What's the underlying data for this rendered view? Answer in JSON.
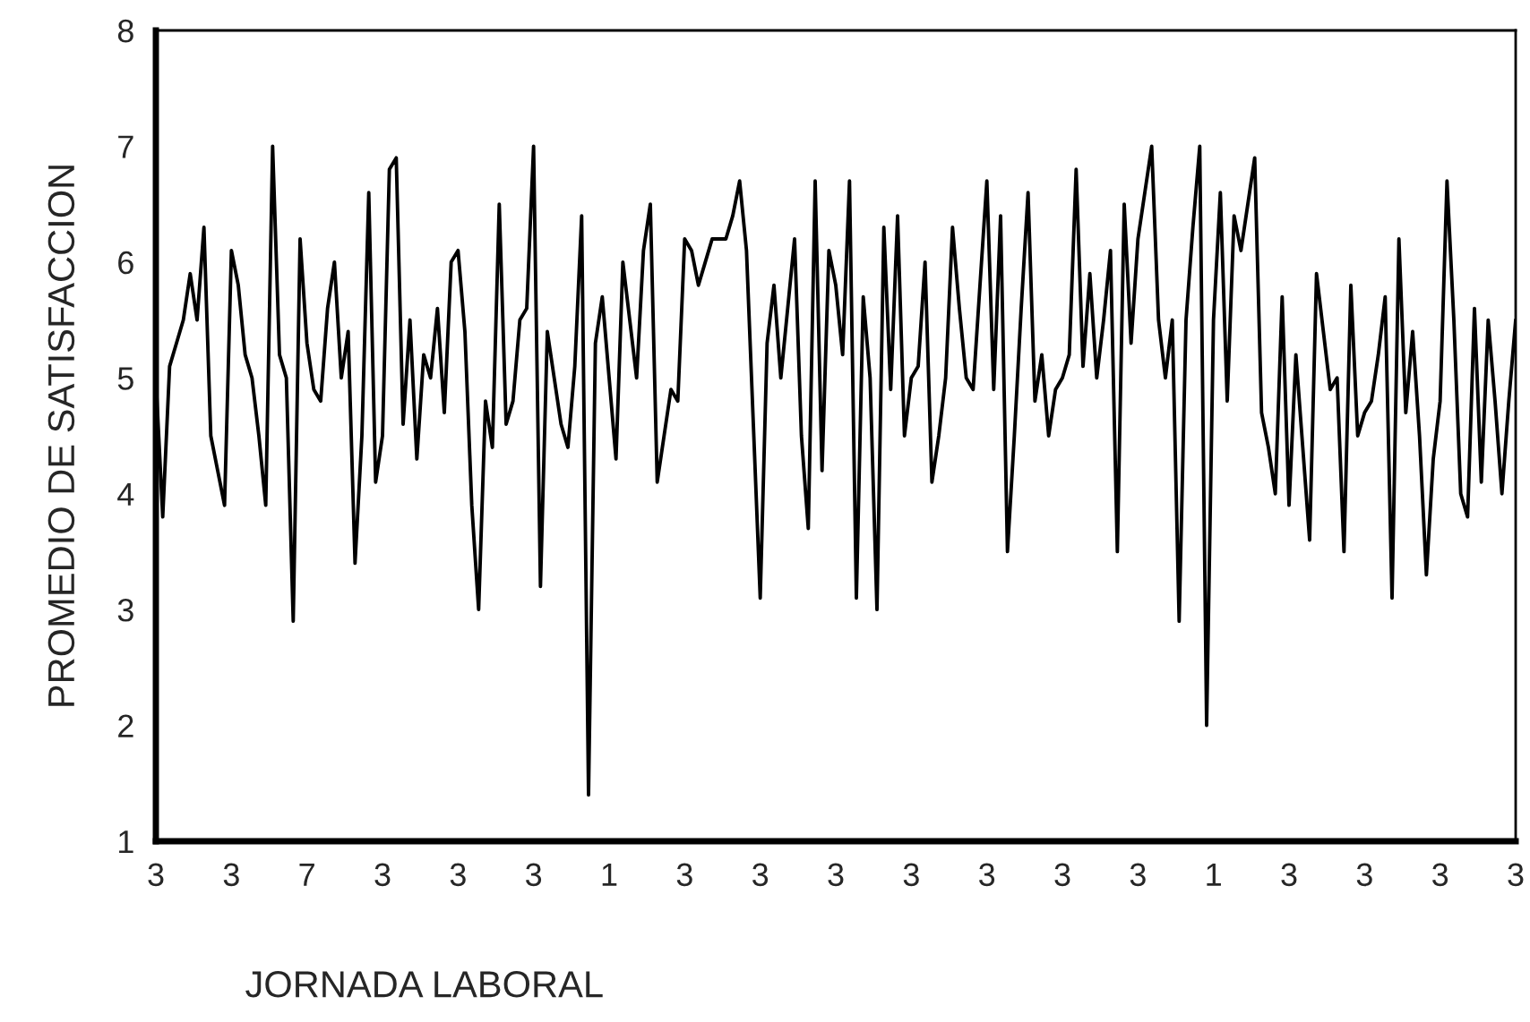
{
  "chart_data": {
    "type": "line",
    "xlabel": "JORNADA LABORAL",
    "ylabel": "PROMEDIO DE SATISFACCION",
    "categories": [
      "3",
      null,
      null,
      null,
      null,
      null,
      null,
      null,
      null,
      null,
      null,
      "3",
      null,
      null,
      null,
      null,
      null,
      null,
      null,
      null,
      null,
      null,
      "7",
      null,
      null,
      null,
      null,
      null,
      null,
      null,
      null,
      null,
      null,
      "3",
      null,
      null,
      null,
      null,
      null,
      null,
      null,
      null,
      null,
      null,
      "3",
      null,
      null,
      null,
      null,
      null,
      null,
      null,
      null,
      null,
      null,
      "3",
      null,
      null,
      null,
      null,
      null,
      null,
      null,
      null,
      null,
      null,
      "1",
      null,
      null,
      null,
      null,
      null,
      null,
      null,
      null,
      null,
      null,
      "3",
      null,
      null,
      null,
      null,
      null,
      null,
      null,
      null,
      null,
      null,
      "3",
      null,
      null,
      null,
      null,
      null,
      null,
      null,
      null,
      null,
      null,
      "3",
      null,
      null,
      null,
      null,
      null,
      null,
      null,
      null,
      null,
      null,
      "3",
      null,
      null,
      null,
      null,
      null,
      null,
      null,
      null,
      null,
      null,
      "3",
      null,
      null,
      null,
      null,
      null,
      null,
      null,
      null,
      null,
      null,
      "3",
      null,
      null,
      null,
      null,
      null,
      null,
      null,
      null,
      null,
      null,
      "3",
      null,
      null,
      null,
      null,
      null,
      null,
      null,
      null,
      null,
      null,
      "1",
      null,
      null,
      null,
      null,
      null,
      null,
      null,
      null,
      null,
      null,
      "3",
      null,
      null,
      null,
      null,
      null,
      null,
      null,
      null,
      null,
      null,
      "3",
      null,
      null,
      null,
      null,
      null,
      null,
      null,
      null,
      null,
      null,
      "3",
      null,
      null,
      null,
      null,
      null,
      null,
      null,
      null,
      null,
      null,
      "3"
    ],
    "series": [
      {
        "color": "#000000",
        "values": [
          5.0,
          3.8,
          5.1,
          5.3,
          5.5,
          5.9,
          5.5,
          6.3,
          4.5,
          4.2,
          3.9,
          6.1,
          5.8,
          5.2,
          5.0,
          4.5,
          3.9,
          7.0,
          5.2,
          5.0,
          2.9,
          6.2,
          5.3,
          4.9,
          4.8,
          5.6,
          6.0,
          5.0,
          5.4,
          3.4,
          4.5,
          6.6,
          4.1,
          4.5,
          6.8,
          6.9,
          4.6,
          5.5,
          4.3,
          5.2,
          5.0,
          5.6,
          4.7,
          6.0,
          6.1,
          5.4,
          3.9,
          3.0,
          4.8,
          4.4,
          6.5,
          4.6,
          4.8,
          5.5,
          5.6,
          7.0,
          3.2,
          5.4,
          5.0,
          4.6,
          4.4,
          5.1,
          6.4,
          1.4,
          5.3,
          5.7,
          5.0,
          4.3,
          6.0,
          5.5,
          5.0,
          6.1,
          6.5,
          4.1,
          4.5,
          4.9,
          4.8,
          6.2,
          6.1,
          5.8,
          6.0,
          6.2,
          6.2,
          6.2,
          6.4,
          6.7,
          6.1,
          4.6,
          3.1,
          5.3,
          5.8,
          5.0,
          5.6,
          6.2,
          4.5,
          3.7,
          6.7,
          4.2,
          6.1,
          5.8,
          5.2,
          6.7,
          3.1,
          5.7,
          5.0,
          3.0,
          6.3,
          4.9,
          6.4,
          4.5,
          5.0,
          5.1,
          6.0,
          4.1,
          4.5,
          5.0,
          6.3,
          5.6,
          5.0,
          4.9,
          5.8,
          6.7,
          4.9,
          6.4,
          3.5,
          4.5,
          5.6,
          6.6,
          4.8,
          5.2,
          4.5,
          4.9,
          5.0,
          5.2,
          6.8,
          5.1,
          5.9,
          5.0,
          5.5,
          6.1,
          3.5,
          6.5,
          5.3,
          6.2,
          6.6,
          7.0,
          5.5,
          5.0,
          5.5,
          2.9,
          5.5,
          6.3,
          7.0,
          2.0,
          5.5,
          6.6,
          4.8,
          6.4,
          6.1,
          6.5,
          6.9,
          4.7,
          4.4,
          4.0,
          5.7,
          3.9,
          5.2,
          4.4,
          3.6,
          5.9,
          5.4,
          4.9,
          5.0,
          3.5,
          5.8,
          4.5,
          4.7,
          4.8,
          5.2,
          5.7,
          3.1,
          6.2,
          4.7,
          5.4,
          4.5,
          3.3,
          4.3,
          4.8,
          6.7,
          5.5,
          4.0,
          3.8,
          5.6,
          4.1,
          5.5,
          4.8,
          4.0,
          4.8,
          5.5
        ]
      }
    ],
    "ylim": [
      1,
      8
    ],
    "yticks": [
      1,
      2,
      3,
      4,
      5,
      6,
      7,
      8
    ],
    "grid": false,
    "marker": "none",
    "line_style": "solid"
  }
}
